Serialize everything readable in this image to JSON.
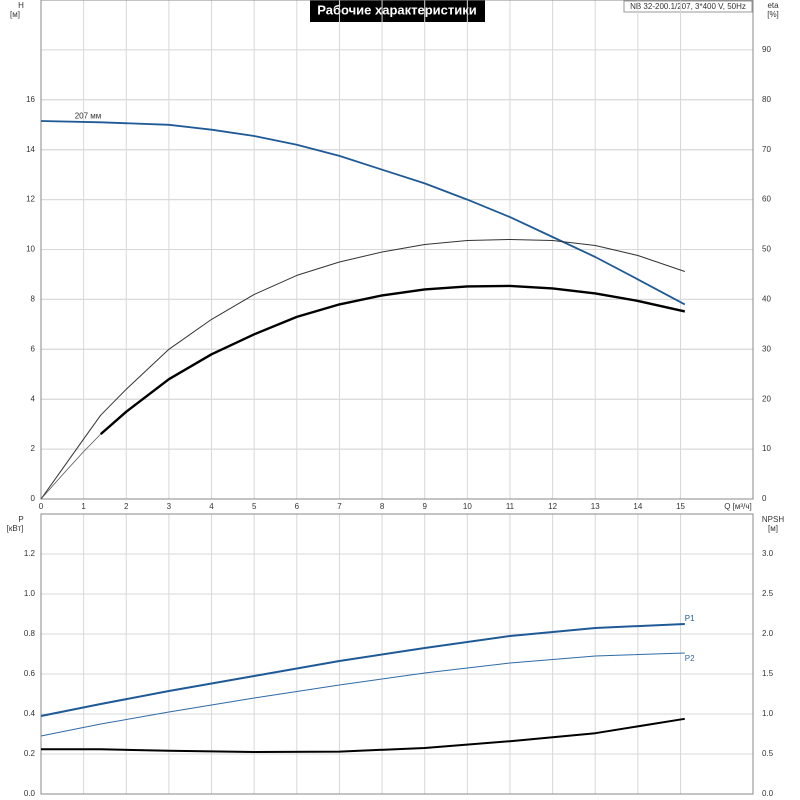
{
  "chart_data": [
    {
      "type": "line",
      "title": "Рабочие характеристики",
      "subtitle": "NB 32-200.1/207, 3*400 V, 50Hz",
      "xlabel": "Q [м³/ч]",
      "ylabel": [
        "H",
        "[м]"
      ],
      "y2label": [
        "eta",
        "[%]"
      ],
      "xlim": [
        0,
        16.7
      ],
      "xticks": [
        0,
        1,
        2,
        3,
        4,
        5,
        6,
        7,
        8,
        9,
        10,
        11,
        12,
        13,
        14,
        15
      ],
      "ylim": [
        0,
        20
      ],
      "yticks": [
        0,
        2,
        4,
        6,
        8,
        10,
        12,
        14,
        16
      ],
      "y2lim": [
        0,
        100
      ],
      "y2ticks": [
        0,
        10,
        20,
        30,
        40,
        50,
        60,
        70,
        80,
        90
      ],
      "grid": true,
      "series": [
        {
          "name": "207 мм",
          "color": "#1f5a96",
          "line_width": 1.8,
          "x": [
            0,
            1.4,
            3,
            4,
            5,
            6,
            7,
            8,
            9,
            10,
            11,
            12,
            13,
            14,
            15.1
          ],
          "values": [
            15.15,
            15.1,
            15.0,
            14.8,
            14.55,
            14.2,
            13.75,
            13.2,
            12.65,
            12.0,
            11.3,
            10.5,
            9.7,
            8.8,
            7.8
          ]
        },
        {
          "color": "#333333",
          "line_width": 1,
          "axis": "y2",
          "x": [
            0,
            0.5,
            1,
            1.4,
            2,
            3,
            4,
            5,
            6,
            7,
            8,
            9,
            10,
            11,
            12,
            13,
            14,
            15.1
          ],
          "values": [
            0,
            6,
            12,
            16.8,
            22,
            30,
            36,
            41,
            44.8,
            47.5,
            49.5,
            51,
            51.8,
            52,
            51.8,
            50.8,
            48.8,
            45.6
          ]
        },
        {
          "color": "#000000",
          "line_width": 2.4,
          "axis": "y2",
          "x": [
            1.4,
            2,
            3,
            4,
            5,
            6,
            7,
            8,
            9,
            10,
            11,
            12,
            13,
            14,
            15.1
          ],
          "values": [
            13,
            17.5,
            24,
            29,
            33,
            36.5,
            39,
            40.8,
            42,
            42.6,
            42.7,
            42.2,
            41.2,
            39.7,
            37.6
          ]
        },
        {
          "color": "#555555",
          "line_width": 0.8,
          "axis": "y2",
          "x": [
            0,
            0.5,
            1,
            1.4
          ],
          "values": [
            0,
            4.8,
            9.5,
            13
          ]
        }
      ]
    },
    {
      "type": "line",
      "ylabel": [
        "P",
        "[кВт]"
      ],
      "y2label": [
        "NPSH",
        "[м]"
      ],
      "xlim": [
        0,
        16.7
      ],
      "ylim": [
        0,
        1.4
      ],
      "yticks": [
        {
          "value": 0,
          "label": "0.0"
        },
        0.2,
        0.4,
        0.6,
        0.8,
        {
          "value": 1,
          "label": "1.0"
        },
        1.2
      ],
      "y2lim": [
        0,
        3.5
      ],
      "y2ticks": [
        {
          "value": 0,
          "label": "0.0"
        },
        0.5,
        {
          "value": 1,
          "label": "1.0"
        },
        1.5,
        {
          "value": 2,
          "label": "2.0"
        },
        2.5,
        {
          "value": 3,
          "label": "3.0"
        }
      ],
      "grid": true,
      "series": [
        {
          "name": "P1",
          "color": "#1f5a96",
          "line_width": 2,
          "x": [
            0,
            1.4,
            3,
            5,
            7,
            9,
            11,
            13,
            15.1
          ],
          "values": [
            0.39,
            0.45,
            0.515,
            0.59,
            0.665,
            0.73,
            0.79,
            0.83,
            0.85
          ]
        },
        {
          "name": "P2",
          "color": "#2f6aa6",
          "line_width": 1,
          "x": [
            0,
            1.4,
            3,
            5,
            7,
            9,
            11,
            13,
            15.1
          ],
          "values": [
            0.29,
            0.35,
            0.41,
            0.48,
            0.545,
            0.605,
            0.655,
            0.69,
            0.705
          ]
        },
        {
          "color": "#000000",
          "line_width": 2,
          "axis": "y2",
          "x": [
            0,
            1.4,
            3,
            5,
            7,
            9,
            11,
            13,
            15.1
          ],
          "values": [
            0.56,
            0.56,
            0.54,
            0.525,
            0.53,
            0.575,
            0.66,
            0.76,
            0.94
          ]
        }
      ]
    }
  ]
}
